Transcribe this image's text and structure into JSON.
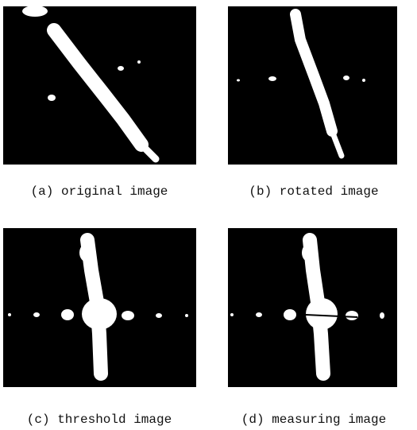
{
  "figure": {
    "panels": [
      {
        "caption": "(a) original image"
      },
      {
        "caption": "(b) rotated image"
      },
      {
        "caption": "(c) threshold image"
      },
      {
        "caption": "(d) measuring image"
      }
    ]
  }
}
